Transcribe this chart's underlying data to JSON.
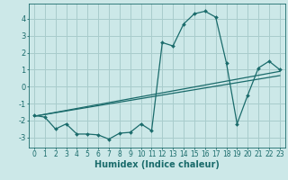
{
  "xlabel": "Humidex (Indice chaleur)",
  "bg_color": "#cce8e8",
  "line_color": "#1a6b6b",
  "grid_color": "#a8cccc",
  "xlim": [
    -0.5,
    23.5
  ],
  "ylim": [
    -3.6,
    4.9
  ],
  "xticks": [
    0,
    1,
    2,
    3,
    4,
    5,
    6,
    7,
    8,
    9,
    10,
    11,
    12,
    13,
    14,
    15,
    16,
    17,
    18,
    19,
    20,
    21,
    22,
    23
  ],
  "yticks": [
    -3,
    -2,
    -1,
    0,
    1,
    2,
    3,
    4
  ],
  "main_x": [
    0,
    1,
    2,
    3,
    4,
    5,
    6,
    7,
    8,
    9,
    10,
    11,
    12,
    13,
    14,
    15,
    16,
    17,
    18,
    19,
    20,
    21,
    22,
    23
  ],
  "main_y": [
    -1.7,
    -1.8,
    -2.5,
    -2.2,
    -2.8,
    -2.8,
    -2.85,
    -3.1,
    -2.75,
    -2.7,
    -2.2,
    -2.6,
    2.6,
    2.4,
    3.7,
    4.3,
    4.45,
    4.1,
    1.4,
    -2.2,
    -0.5,
    1.1,
    1.5,
    1.0
  ],
  "line2_x": [
    0,
    23
  ],
  "line2_y": [
    -1.75,
    0.9
  ],
  "line3_x": [
    0,
    23
  ],
  "line3_y": [
    -1.75,
    0.65
  ],
  "xlabel_fontsize": 7,
  "tick_fontsize": 5.5,
  "ytick_fontsize": 6
}
